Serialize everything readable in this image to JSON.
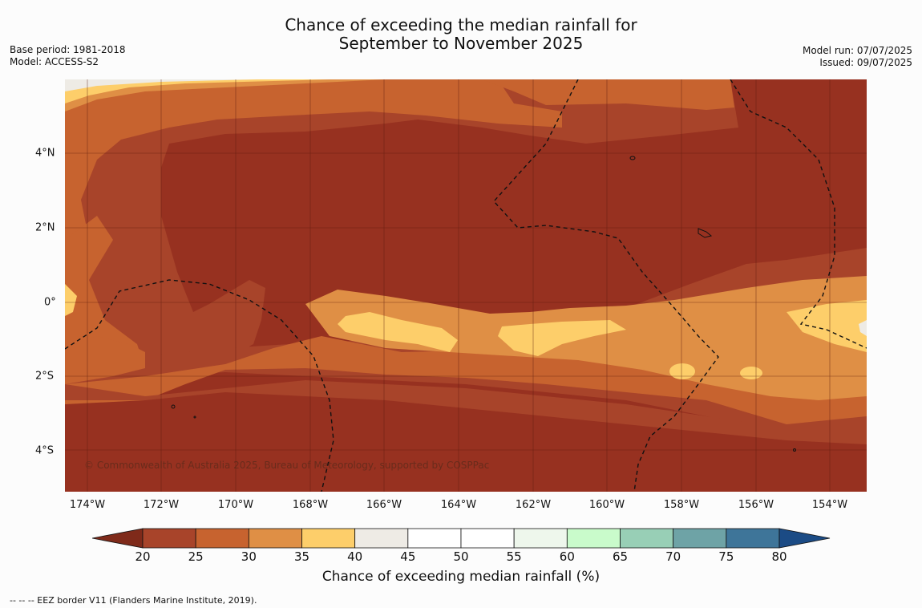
{
  "title_line1": "Chance of exceeding the median rainfall for",
  "title_line2": "September to November 2025",
  "base_period": "Base period: 1981-2018",
  "model": "Model: ACCESS-S2",
  "model_run": "Model run: 07/07/2025",
  "issued": "Issued: 09/07/2025",
  "copyright": "© Commonwealth of Australia 2025, Bureau of Meteorology, supported by COSPPac",
  "map": {
    "x_ticks": [
      "174°W",
      "172°W",
      "170°W",
      "168°W",
      "166°W",
      "164°W",
      "162°W",
      "160°W",
      "158°W",
      "156°W",
      "154°W"
    ],
    "y_ticks": [
      "4°N",
      "2°N",
      "0°",
      "2°S",
      "4°S"
    ]
  },
  "colorbar": {
    "ticks": [
      "20",
      "25",
      "30",
      "35",
      "40",
      "45",
      "50",
      "55",
      "60",
      "65",
      "70",
      "75",
      "80"
    ],
    "colors": [
      "#7f2a1a",
      "#a8442a",
      "#c7632f",
      "#df8f45",
      "#fdce6a",
      "#eeebe5",
      "#ffffff",
      "#ffffff",
      "#eef7ec",
      "#c9fbcb",
      "#98cfb6",
      "#6ea3a6",
      "#3e7599",
      "#1b4b85"
    ],
    "label": "Chance of exceeding median rainfall (%)"
  },
  "footer": "--  --  -- EEZ border V11 (Flanders Marine Institute, 2019)."
}
